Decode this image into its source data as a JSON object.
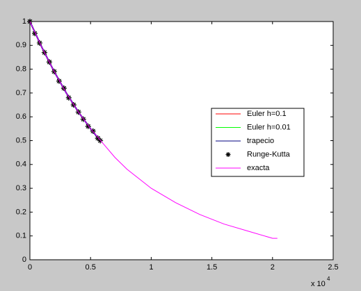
{
  "chart_data": {
    "type": "line",
    "x_exponent_base": "x 10",
    "x_exponent": "4",
    "xlim": [
      0,
      2.5
    ],
    "xticks": [
      0,
      0.5,
      1,
      1.5,
      2,
      2.5
    ],
    "ylim": [
      0,
      1
    ],
    "yticks": [
      0,
      0.1,
      0.2,
      0.3,
      0.4,
      0.5,
      0.6,
      0.7,
      0.8,
      0.9,
      1
    ],
    "legend": "right",
    "series": [
      {
        "name": "Euler h=0.1",
        "color": "#ff0000",
        "style": "line",
        "x": [
          0,
          0.1,
          0.2,
          0.3,
          0.4,
          0.5,
          0.58
        ],
        "values": [
          1,
          0.89,
          0.79,
          0.7,
          0.62,
          0.55,
          0.5
        ]
      },
      {
        "name": "Euler h=0.01",
        "color": "#00ff00",
        "style": "line",
        "x": [
          0,
          0.1,
          0.2,
          0.3,
          0.4,
          0.5,
          0.58
        ],
        "values": [
          1,
          0.89,
          0.79,
          0.7,
          0.62,
          0.55,
          0.5
        ]
      },
      {
        "name": "trapecio",
        "color": "#000080",
        "style": "line",
        "x": [
          0,
          0.1,
          0.2,
          0.3,
          0.4,
          0.5,
          0.58
        ],
        "values": [
          1,
          0.89,
          0.79,
          0.7,
          0.62,
          0.55,
          0.5
        ]
      },
      {
        "name": "Runge-Kutta",
        "color": "#000000",
        "style": "marker",
        "x": [
          0,
          0.04,
          0.08,
          0.12,
          0.16,
          0.2,
          0.24,
          0.28,
          0.32,
          0.36,
          0.4,
          0.44,
          0.48,
          0.52,
          0.56,
          0.58
        ],
        "values": [
          1,
          0.95,
          0.91,
          0.87,
          0.83,
          0.79,
          0.75,
          0.72,
          0.68,
          0.65,
          0.62,
          0.59,
          0.56,
          0.54,
          0.51,
          0.5
        ]
      },
      {
        "name": "exacta",
        "color": "#ff00ff",
        "style": "line",
        "x": [
          0,
          0.1,
          0.2,
          0.3,
          0.4,
          0.5,
          0.6,
          0.7,
          0.8,
          0.9,
          1.0,
          1.2,
          1.4,
          1.6,
          1.8,
          2.0,
          2.04
        ],
        "values": [
          1,
          0.89,
          0.79,
          0.7,
          0.62,
          0.55,
          0.49,
          0.43,
          0.38,
          0.34,
          0.3,
          0.24,
          0.19,
          0.15,
          0.12,
          0.09,
          0.09
        ]
      }
    ]
  }
}
